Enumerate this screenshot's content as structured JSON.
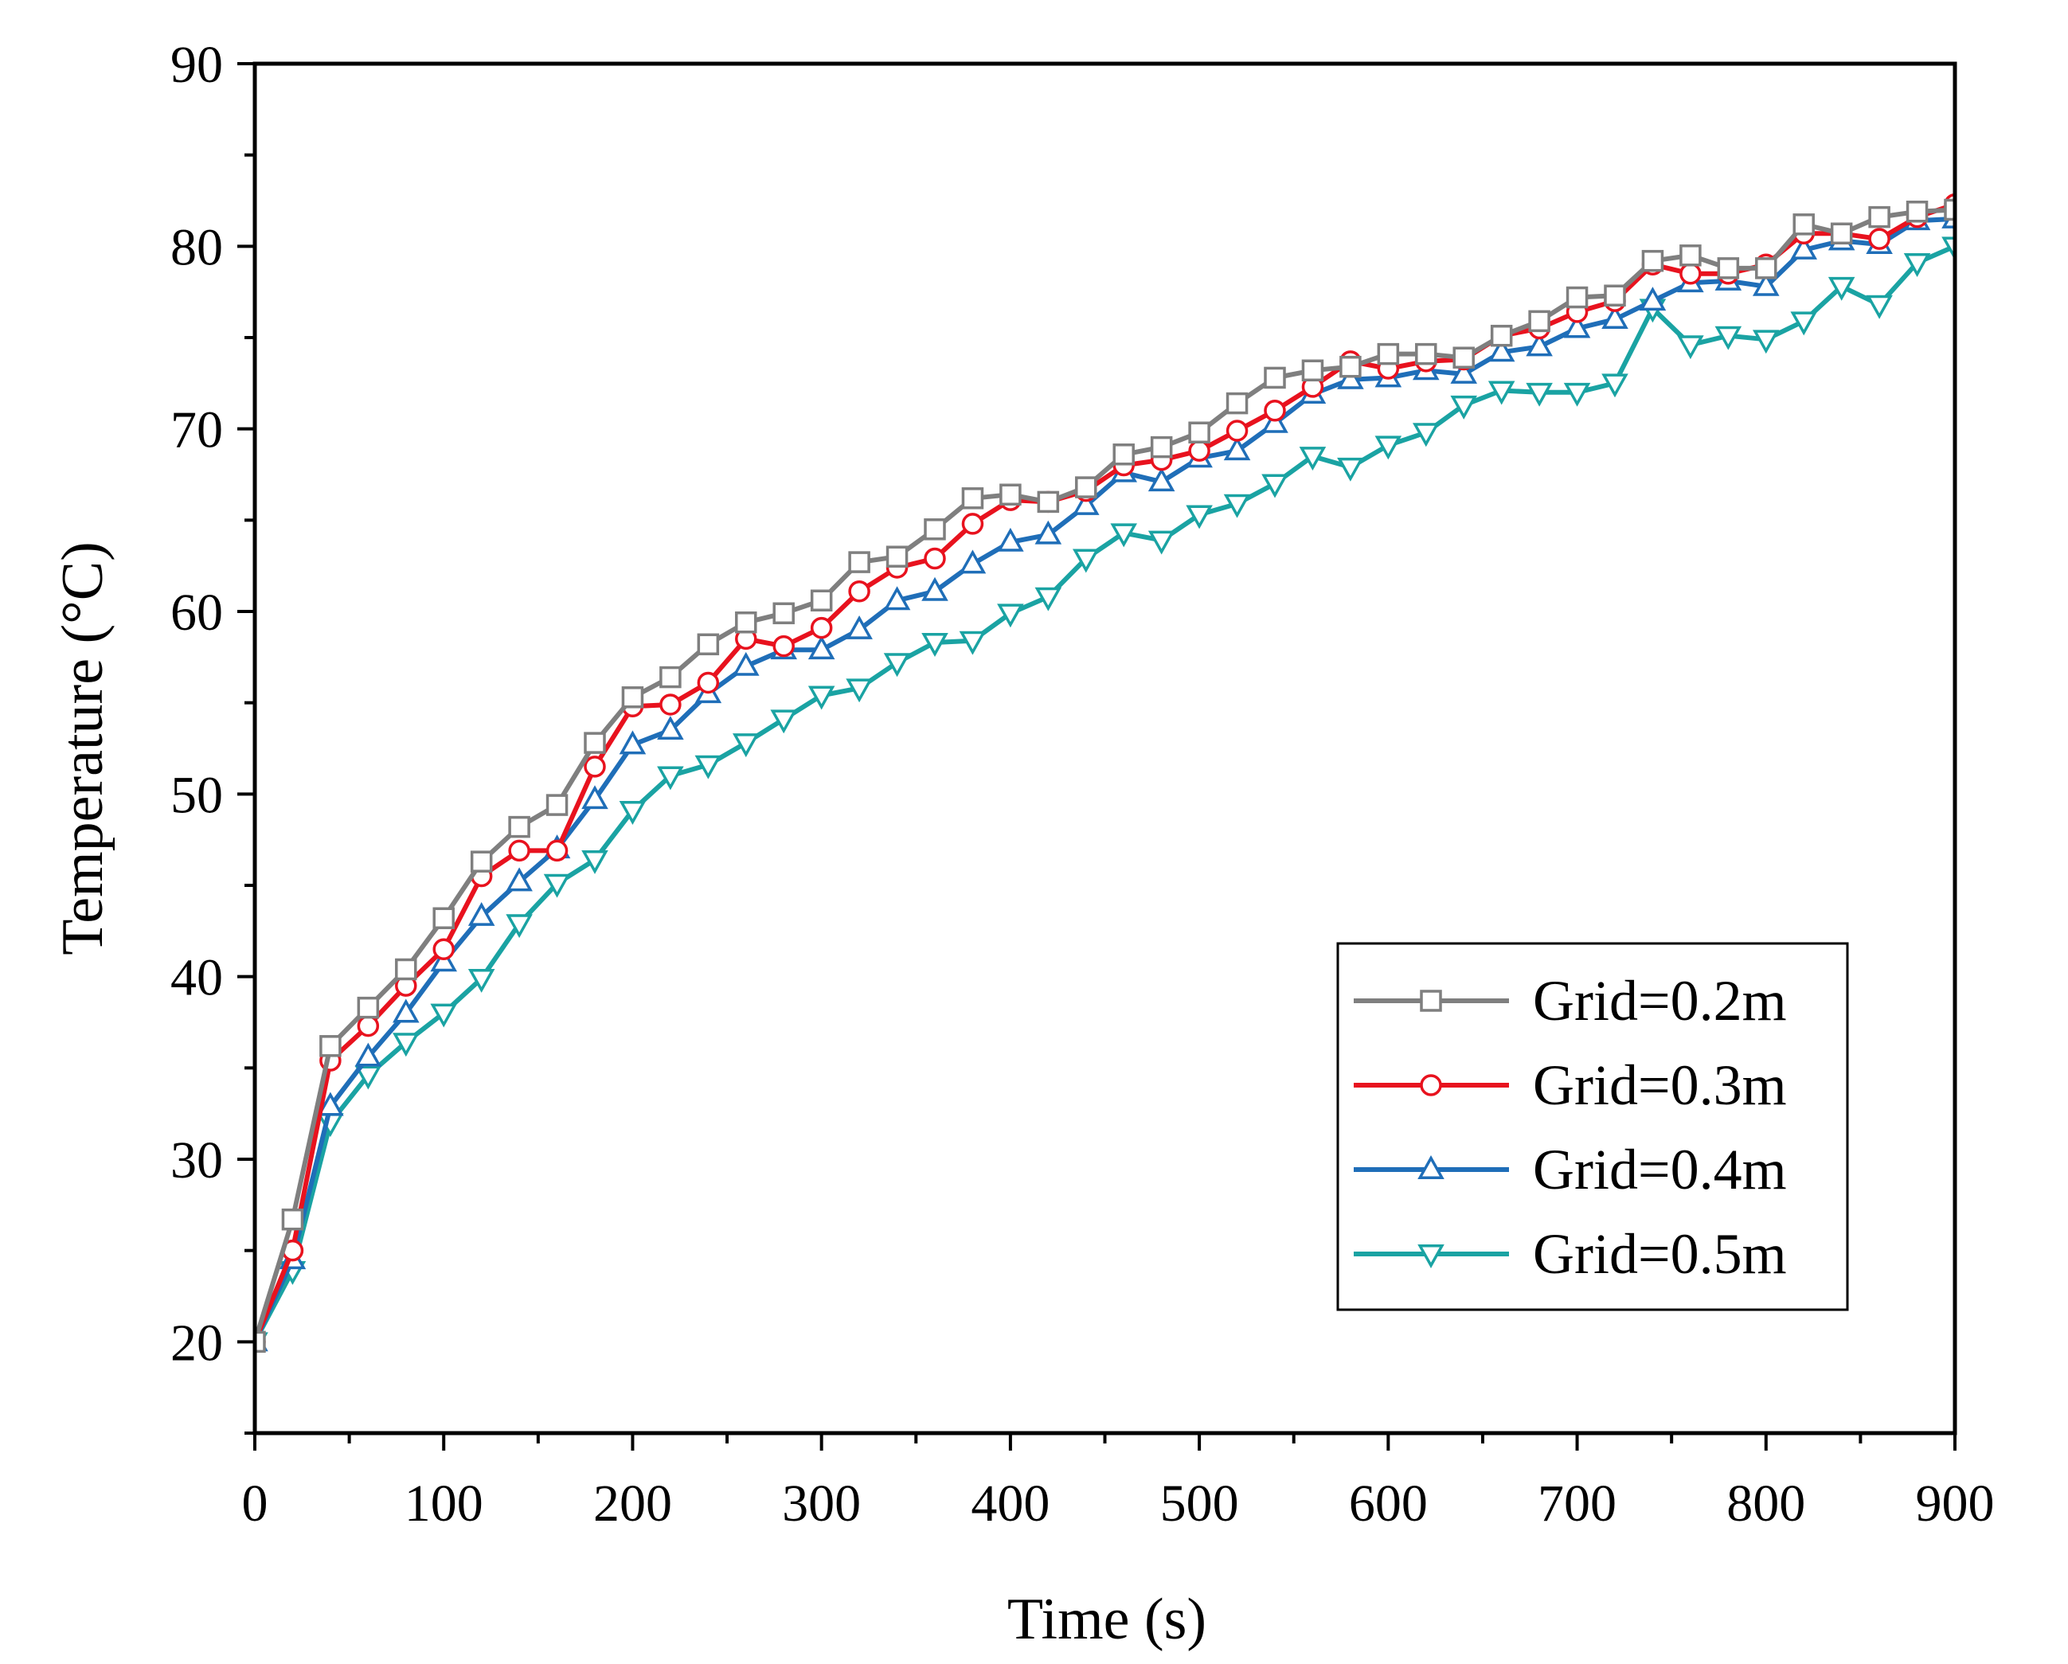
{
  "chart_data": {
    "type": "line",
    "title": "",
    "xlabel": "Time (s)",
    "ylabel": "Temperature (°C)",
    "xlim": [
      0,
      900
    ],
    "ylim": [
      15,
      90
    ],
    "xticks": [
      0,
      100,
      200,
      300,
      400,
      500,
      600,
      700,
      800,
      900
    ],
    "yticks": [
      20,
      30,
      40,
      50,
      60,
      70,
      80,
      90
    ],
    "x_tick_labels": [
      "0",
      "100",
      "200",
      "300",
      "400",
      "500",
      "600",
      "700",
      "800",
      "900"
    ],
    "y_tick_labels": [
      "20",
      "30",
      "40",
      "50",
      "60",
      "70",
      "80",
      "90"
    ],
    "grid": false,
    "legend_position": "bottom-right",
    "x": [
      0,
      20,
      40,
      60,
      80,
      100,
      120,
      140,
      160,
      180,
      200,
      220,
      240,
      260,
      280,
      300,
      320,
      340,
      360,
      380,
      400,
      420,
      440,
      460,
      480,
      500,
      520,
      540,
      560,
      580,
      600,
      620,
      640,
      660,
      680,
      700,
      720,
      740,
      760,
      780,
      800,
      820,
      840,
      860,
      880,
      900
    ],
    "series": [
      {
        "name": "Grid=0.2m",
        "color": "#7f7f7f",
        "marker": "square",
        "values": [
          20,
          26.7,
          36.2,
          38.3,
          40.4,
          43.2,
          46.3,
          48.2,
          49.4,
          52.8,
          55.3,
          56.4,
          58.2,
          59.4,
          59.9,
          60.6,
          62.7,
          63.0,
          64.5,
          66.2,
          66.4,
          66.0,
          66.8,
          68.6,
          69.0,
          69.8,
          71.4,
          72.8,
          73.2,
          73.4,
          74.1,
          74.1,
          73.9,
          75.1,
          75.9,
          77.2,
          77.3,
          79.2,
          79.5,
          78.8,
          78.8,
          81.2,
          80.7,
          81.6,
          81.9,
          82.0
        ]
      },
      {
        "name": "Grid=0.3m",
        "color": "#e8121e",
        "marker": "circle",
        "values": [
          20,
          25.0,
          35.4,
          37.3,
          39.5,
          41.5,
          45.5,
          46.9,
          46.9,
          51.5,
          54.8,
          54.9,
          56.1,
          58.5,
          58.1,
          59.1,
          61.1,
          62.4,
          62.9,
          64.8,
          66.1,
          66.0,
          66.6,
          68.0,
          68.3,
          68.8,
          69.9,
          71.0,
          72.3,
          73.7,
          73.3,
          73.7,
          73.8,
          75.1,
          75.5,
          76.4,
          77.0,
          79.0,
          78.5,
          78.5,
          79.0,
          80.7,
          80.7,
          80.4,
          81.6,
          82.3
        ]
      },
      {
        "name": "Grid=0.4m",
        "color": "#1f6eb8",
        "marker": "triangle-up",
        "values": [
          20,
          24.5,
          32.9,
          35.6,
          38.0,
          40.8,
          43.3,
          45.2,
          47.0,
          49.7,
          52.7,
          53.5,
          55.5,
          57.0,
          57.9,
          57.9,
          59.0,
          60.6,
          61.1,
          62.6,
          63.8,
          64.2,
          65.8,
          67.6,
          67.1,
          68.4,
          68.8,
          70.3,
          71.9,
          72.7,
          72.8,
          73.2,
          73.0,
          74.2,
          74.5,
          75.5,
          76.0,
          77.0,
          78.0,
          78.1,
          77.8,
          79.8,
          80.3,
          80.1,
          81.4,
          81.5
        ]
      },
      {
        "name": "Grid=0.5m",
        "color": "#1aa3a3",
        "marker": "triangle-down",
        "values": [
          20,
          23.9,
          32.0,
          34.6,
          36.4,
          38.0,
          39.9,
          42.9,
          45.1,
          46.4,
          49.1,
          51.0,
          51.6,
          52.8,
          54.1,
          55.4,
          55.8,
          57.2,
          58.3,
          58.4,
          59.9,
          60.8,
          62.9,
          64.3,
          63.9,
          65.3,
          65.9,
          67.0,
          68.5,
          67.9,
          69.1,
          69.8,
          71.3,
          72.1,
          72.0,
          72.0,
          72.5,
          76.6,
          74.6,
          75.1,
          74.9,
          75.9,
          77.8,
          76.8,
          79.1,
          80.0
        ]
      }
    ]
  }
}
